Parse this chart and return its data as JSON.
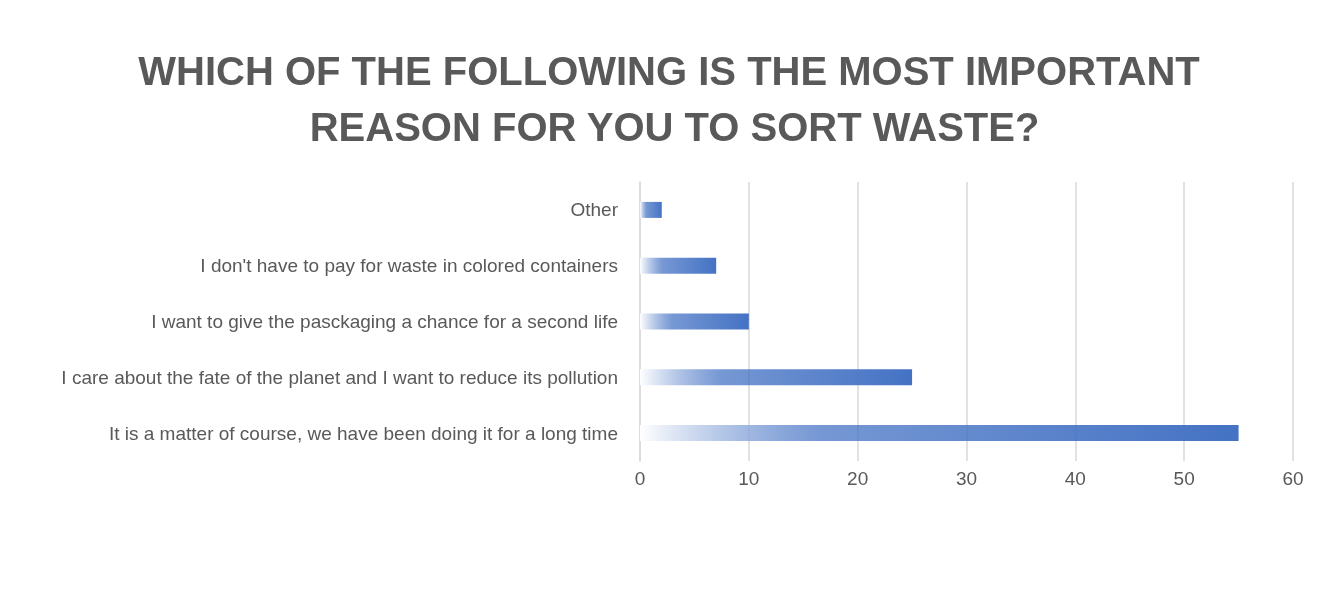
{
  "chart_data": {
    "type": "bar",
    "orientation": "horizontal",
    "title": "WHICH OF THE FOLLOWING IS THE MOST IMPORTANT REASON FOR YOU TO SORT WASTE?",
    "categories": [
      "Other",
      "I don't have to pay for waste in colored containers",
      "I want to give the pasckaging a chance for a second life",
      "I care about the fate of the planet and I want to reduce its pollution",
      "It is a matter of course, we have been doing it for a long time"
    ],
    "series": [
      {
        "color": "#4472c4",
        "values": [
          2,
          7,
          10,
          25,
          55
        ]
      }
    ],
    "xlim": [
      0,
      60
    ],
    "xticks": [
      0,
      10,
      20,
      30,
      40,
      50,
      60
    ],
    "grid": "x"
  }
}
